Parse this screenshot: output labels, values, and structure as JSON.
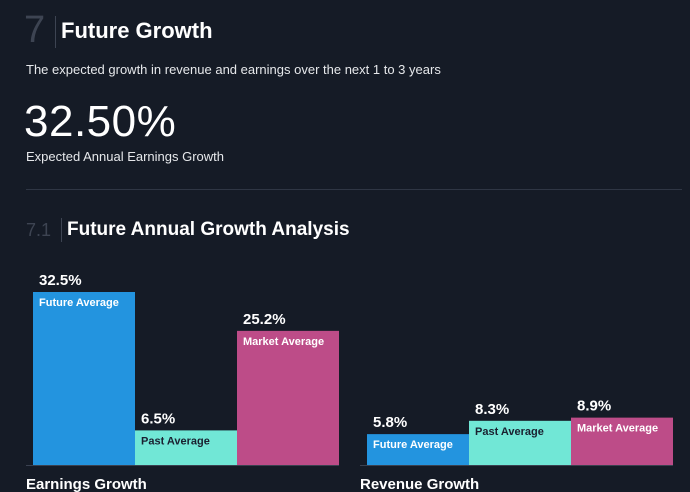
{
  "section": {
    "number": "7",
    "title": "Future Growth",
    "subtitle": "The expected growth in revenue and earnings over the next 1 to 3 years"
  },
  "headline": {
    "value": "32.50%",
    "caption": "Expected Annual Earnings Growth"
  },
  "subsection": {
    "number": "7.1",
    "title": "Future Annual Growth Analysis"
  },
  "colors": {
    "background": "#151b26",
    "future": "#2394df",
    "past": "#71e7d6",
    "market": "#bd4c88"
  },
  "chart_data": [
    {
      "type": "bar",
      "title": "Earnings Growth",
      "categories": [
        "Future Average",
        "Past Average",
        "Market Average"
      ],
      "values": [
        32.5,
        6.5,
        25.2
      ],
      "value_labels": [
        "32.5%",
        "6.5%",
        "25.2%"
      ],
      "unit": "%"
    },
    {
      "type": "bar",
      "title": "Revenue Growth",
      "categories": [
        "Future Average",
        "Past Average",
        "Market Average"
      ],
      "values": [
        5.8,
        8.3,
        8.9
      ],
      "value_labels": [
        "5.8%",
        "8.3%",
        "8.9%"
      ],
      "unit": "%"
    }
  ]
}
